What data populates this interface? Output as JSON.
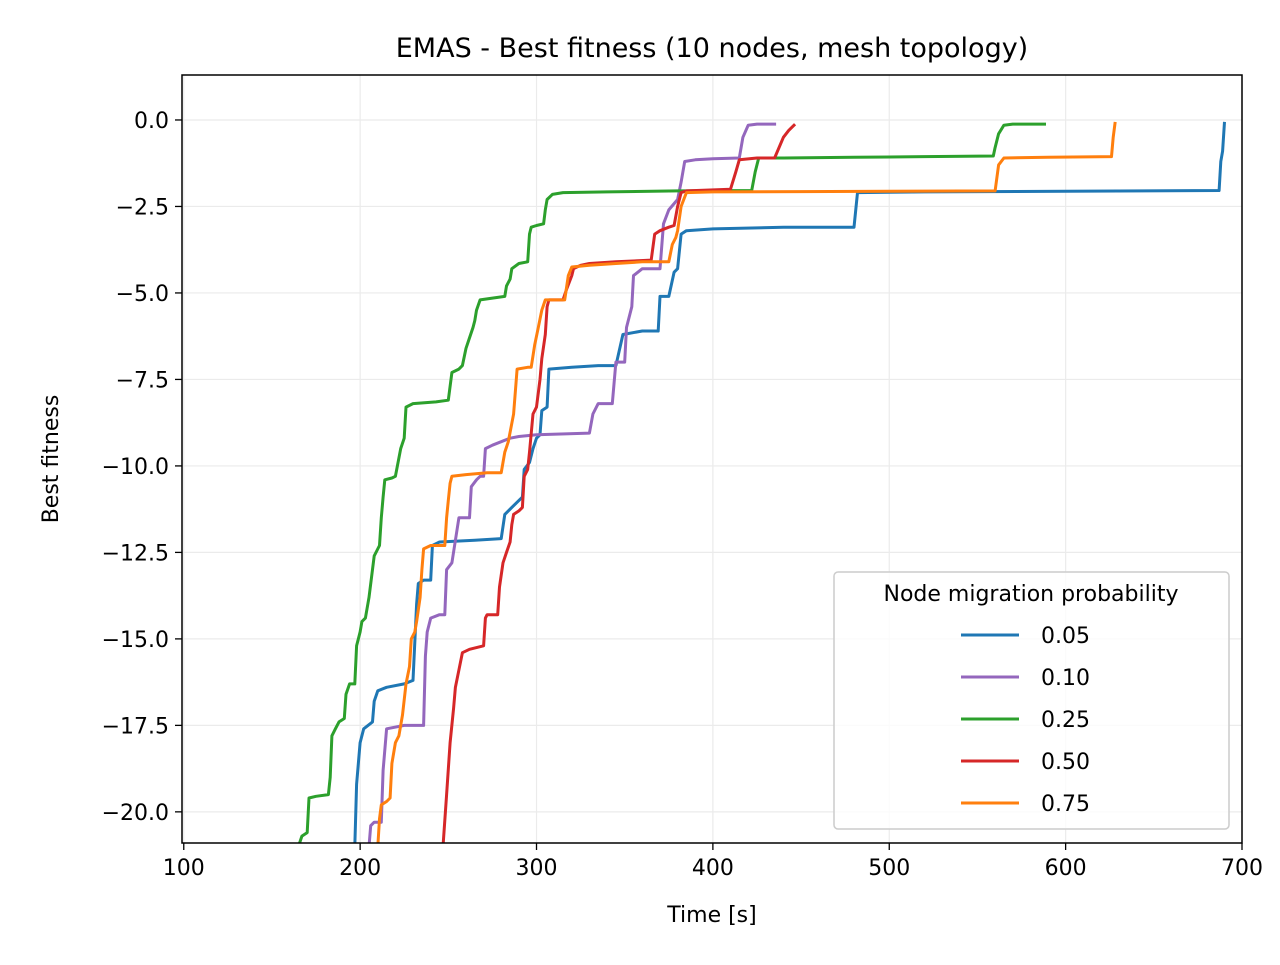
{
  "chart_data": {
    "type": "line",
    "title": "EMAS - Best fitness (10 nodes, mesh topology)",
    "xlabel": "Time [s]",
    "ylabel": "Best fitness",
    "xlim": [
      99,
      700
    ],
    "ylim": [
      -20.9,
      1.3
    ],
    "xticks": [
      100,
      200,
      300,
      400,
      500,
      600,
      700
    ],
    "yticks": [
      0.0,
      -2.5,
      -5.0,
      -7.5,
      -10.0,
      -12.5,
      -15.0,
      -17.5,
      -20.0
    ],
    "xtick_labels": [
      "100",
      "200",
      "300",
      "400",
      "500",
      "600",
      "700"
    ],
    "ytick_labels": [
      "0.0",
      "−2.5",
      "−5.0",
      "−7.5",
      "−10.0",
      "−12.5",
      "−15.0",
      "−17.5",
      "−20.0"
    ],
    "grid": true,
    "legend": {
      "title": "Node migration probability",
      "position": "lower-right"
    },
    "series": [
      {
        "name": "0.05",
        "color": "#1f77b4",
        "points": [
          [
            197,
            -21
          ],
          [
            198,
            -19.2
          ],
          [
            200,
            -18.0
          ],
          [
            202,
            -17.6
          ],
          [
            207,
            -17.4
          ],
          [
            208,
            -16.8
          ],
          [
            210,
            -16.5
          ],
          [
            215,
            -16.4
          ],
          [
            225,
            -16.3
          ],
          [
            230,
            -16.2
          ],
          [
            232,
            -14.0
          ],
          [
            233,
            -13.4
          ],
          [
            236,
            -13.3
          ],
          [
            240,
            -13.3
          ],
          [
            241,
            -12.3
          ],
          [
            245,
            -12.2
          ],
          [
            265,
            -12.15
          ],
          [
            280,
            -12.1
          ],
          [
            282,
            -11.4
          ],
          [
            286,
            -11.2
          ],
          [
            292,
            -10.9
          ],
          [
            293,
            -10.1
          ],
          [
            296,
            -9.9
          ],
          [
            298,
            -9.5
          ],
          [
            300,
            -9.2
          ],
          [
            302,
            -9.1
          ],
          [
            303,
            -8.4
          ],
          [
            306,
            -8.3
          ],
          [
            307,
            -7.2
          ],
          [
            320,
            -7.15
          ],
          [
            335,
            -7.1
          ],
          [
            345,
            -7.1
          ],
          [
            349,
            -6.2
          ],
          [
            360,
            -6.1
          ],
          [
            369,
            -6.1
          ],
          [
            370,
            -5.1
          ],
          [
            375,
            -5.1
          ],
          [
            378,
            -4.4
          ],
          [
            380,
            -4.3
          ],
          [
            382,
            -3.3
          ],
          [
            385,
            -3.2
          ],
          [
            400,
            -3.15
          ],
          [
            440,
            -3.1
          ],
          [
            480,
            -3.1
          ],
          [
            482,
            -2.1
          ],
          [
            520,
            -2.08
          ],
          [
            600,
            -2.06
          ],
          [
            687,
            -2.04
          ],
          [
            688,
            -1.2
          ],
          [
            689,
            -0.9
          ],
          [
            690,
            -0.1
          ]
        ]
      },
      {
        "name": "0.10",
        "color": "#9467bd",
        "points": [
          [
            205,
            -21
          ],
          [
            206,
            -20.4
          ],
          [
            208,
            -20.3
          ],
          [
            212,
            -20.3
          ],
          [
            213,
            -18.8
          ],
          [
            215,
            -17.6
          ],
          [
            225,
            -17.5
          ],
          [
            236,
            -17.5
          ],
          [
            237,
            -15.5
          ],
          [
            238,
            -14.8
          ],
          [
            240,
            -14.4
          ],
          [
            245,
            -14.3
          ],
          [
            248,
            -14.3
          ],
          [
            249,
            -13.0
          ],
          [
            252,
            -12.8
          ],
          [
            256,
            -11.5
          ],
          [
            262,
            -11.5
          ],
          [
            263,
            -10.6
          ],
          [
            266,
            -10.4
          ],
          [
            268,
            -10.3
          ],
          [
            270,
            -10.3
          ],
          [
            271,
            -9.5
          ],
          [
            275,
            -9.4
          ],
          [
            280,
            -9.3
          ],
          [
            285,
            -9.2
          ],
          [
            290,
            -9.15
          ],
          [
            300,
            -9.1
          ],
          [
            330,
            -9.05
          ],
          [
            332,
            -8.5
          ],
          [
            335,
            -8.2
          ],
          [
            343,
            -8.2
          ],
          [
            345,
            -7.0
          ],
          [
            350,
            -7.0
          ],
          [
            351,
            -6.0
          ],
          [
            354,
            -5.4
          ],
          [
            355,
            -4.5
          ],
          [
            360,
            -4.3
          ],
          [
            370,
            -4.3
          ],
          [
            372,
            -3.0
          ],
          [
            375,
            -2.6
          ],
          [
            380,
            -2.3
          ],
          [
            382,
            -1.8
          ],
          [
            384,
            -1.2
          ],
          [
            390,
            -1.15
          ],
          [
            400,
            -1.12
          ],
          [
            415,
            -1.1
          ],
          [
            417,
            -0.5
          ],
          [
            420,
            -0.15
          ],
          [
            425,
            -0.12
          ],
          [
            435,
            -0.12
          ]
        ]
      },
      {
        "name": "0.25",
        "color": "#2ca02c",
        "points": [
          [
            165,
            -21
          ],
          [
            167,
            -20.7
          ],
          [
            170,
            -20.6
          ],
          [
            171,
            -19.6
          ],
          [
            175,
            -19.55
          ],
          [
            182,
            -19.5
          ],
          [
            183,
            -19.0
          ],
          [
            184,
            -17.8
          ],
          [
            186,
            -17.6
          ],
          [
            188,
            -17.4
          ],
          [
            191,
            -17.3
          ],
          [
            192,
            -16.6
          ],
          [
            194,
            -16.3
          ],
          [
            197,
            -16.3
          ],
          [
            198,
            -15.2
          ],
          [
            200,
            -14.8
          ],
          [
            201,
            -14.5
          ],
          [
            203,
            -14.4
          ],
          [
            205,
            -13.8
          ],
          [
            208,
            -12.6
          ],
          [
            211,
            -12.3
          ],
          [
            212,
            -11.5
          ],
          [
            213,
            -10.9
          ],
          [
            214,
            -10.4
          ],
          [
            218,
            -10.35
          ],
          [
            220,
            -10.3
          ],
          [
            223,
            -9.5
          ],
          [
            225,
            -9.2
          ],
          [
            226,
            -8.3
          ],
          [
            230,
            -8.2
          ],
          [
            243,
            -8.15
          ],
          [
            250,
            -8.1
          ],
          [
            252,
            -7.3
          ],
          [
            256,
            -7.2
          ],
          [
            258,
            -7.1
          ],
          [
            260,
            -6.6
          ],
          [
            262,
            -6.3
          ],
          [
            264,
            -6.0
          ],
          [
            265,
            -5.8
          ],
          [
            266,
            -5.5
          ],
          [
            268,
            -5.2
          ],
          [
            275,
            -5.15
          ],
          [
            282,
            -5.1
          ],
          [
            283,
            -4.8
          ],
          [
            285,
            -4.6
          ],
          [
            286,
            -4.3
          ],
          [
            290,
            -4.15
          ],
          [
            295,
            -4.1
          ],
          [
            296,
            -3.3
          ],
          [
            297,
            -3.1
          ],
          [
            300,
            -3.05
          ],
          [
            304,
            -3.0
          ],
          [
            305,
            -2.6
          ],
          [
            306,
            -2.3
          ],
          [
            309,
            -2.15
          ],
          [
            315,
            -2.1
          ],
          [
            340,
            -2.08
          ],
          [
            380,
            -2.05
          ],
          [
            422,
            -2.04
          ],
          [
            424,
            -1.5
          ],
          [
            426,
            -1.1
          ],
          [
            440,
            -1.1
          ],
          [
            480,
            -1.08
          ],
          [
            520,
            -1.06
          ],
          [
            559,
            -1.04
          ],
          [
            560,
            -0.8
          ],
          [
            562,
            -0.4
          ],
          [
            565,
            -0.15
          ],
          [
            570,
            -0.12
          ],
          [
            588,
            -0.12
          ]
        ]
      },
      {
        "name": "0.50",
        "color": "#d62728",
        "points": [
          [
            247,
            -21
          ],
          [
            249,
            -19.5
          ],
          [
            251,
            -18.0
          ],
          [
            253,
            -17.0
          ],
          [
            254,
            -16.4
          ],
          [
            256,
            -15.9
          ],
          [
            258,
            -15.4
          ],
          [
            262,
            -15.3
          ],
          [
            270,
            -15.2
          ],
          [
            271,
            -14.4
          ],
          [
            272,
            -14.3
          ],
          [
            278,
            -14.3
          ],
          [
            279,
            -13.5
          ],
          [
            281,
            -12.8
          ],
          [
            283,
            -12.5
          ],
          [
            285,
            -12.2
          ],
          [
            286,
            -11.7
          ],
          [
            287,
            -11.4
          ],
          [
            290,
            -11.3
          ],
          [
            292,
            -11.2
          ],
          [
            293,
            -10.3
          ],
          [
            295,
            -10.1
          ],
          [
            296,
            -9.6
          ],
          [
            298,
            -8.5
          ],
          [
            300,
            -8.3
          ],
          [
            302,
            -7.5
          ],
          [
            303,
            -6.9
          ],
          [
            305,
            -6.2
          ],
          [
            306,
            -5.4
          ],
          [
            307,
            -5.2
          ],
          [
            312,
            -5.2
          ],
          [
            315,
            -5.2
          ],
          [
            317,
            -4.9
          ],
          [
            320,
            -4.5
          ],
          [
            321,
            -4.3
          ],
          [
            325,
            -4.2
          ],
          [
            330,
            -4.15
          ],
          [
            345,
            -4.1
          ],
          [
            365,
            -4.05
          ],
          [
            367,
            -3.3
          ],
          [
            370,
            -3.2
          ],
          [
            375,
            -3.1
          ],
          [
            378,
            -3.05
          ],
          [
            380,
            -2.5
          ],
          [
            382,
            -2.1
          ],
          [
            385,
            -2.05
          ],
          [
            410,
            -2.0
          ],
          [
            413,
            -1.5
          ],
          [
            415,
            -1.15
          ],
          [
            425,
            -1.1
          ],
          [
            435,
            -1.1
          ],
          [
            440,
            -0.5
          ],
          [
            443,
            -0.3
          ],
          [
            446,
            -0.15
          ]
        ]
      },
      {
        "name": "0.75",
        "color": "#ff7f0e",
        "points": [
          [
            210,
            -21
          ],
          [
            211,
            -20.2
          ],
          [
            212,
            -19.8
          ],
          [
            215,
            -19.7
          ],
          [
            217,
            -19.6
          ],
          [
            218,
            -18.6
          ],
          [
            220,
            -18.0
          ],
          [
            222,
            -17.8
          ],
          [
            224,
            -17.2
          ],
          [
            226,
            -16.3
          ],
          [
            228,
            -15.8
          ],
          [
            229,
            -15.0
          ],
          [
            231,
            -14.8
          ],
          [
            232,
            -14.5
          ],
          [
            234,
            -13.8
          ],
          [
            235,
            -13.0
          ],
          [
            236,
            -12.4
          ],
          [
            240,
            -12.3
          ],
          [
            248,
            -12.3
          ],
          [
            249,
            -11.5
          ],
          [
            250,
            -11.0
          ],
          [
            251,
            -10.5
          ],
          [
            252,
            -10.3
          ],
          [
            260,
            -10.25
          ],
          [
            272,
            -10.2
          ],
          [
            280,
            -10.2
          ],
          [
            282,
            -9.6
          ],
          [
            284,
            -9.3
          ],
          [
            287,
            -8.5
          ],
          [
            289,
            -7.2
          ],
          [
            295,
            -7.15
          ],
          [
            297,
            -7.15
          ],
          [
            299,
            -6.5
          ],
          [
            301,
            -6.0
          ],
          [
            303,
            -5.5
          ],
          [
            305,
            -5.2
          ],
          [
            316,
            -5.2
          ],
          [
            318,
            -4.5
          ],
          [
            320,
            -4.25
          ],
          [
            330,
            -4.2
          ],
          [
            345,
            -4.15
          ],
          [
            360,
            -4.1
          ],
          [
            375,
            -4.1
          ],
          [
            377,
            -3.6
          ],
          [
            379,
            -3.4
          ],
          [
            380,
            -3.2
          ],
          [
            382,
            -2.5
          ],
          [
            385,
            -2.1
          ],
          [
            400,
            -2.08
          ],
          [
            450,
            -2.07
          ],
          [
            500,
            -2.06
          ],
          [
            560,
            -2.05
          ],
          [
            562,
            -1.3
          ],
          [
            565,
            -1.1
          ],
          [
            590,
            -1.08
          ],
          [
            626,
            -1.06
          ],
          [
            627,
            -0.5
          ],
          [
            628,
            -0.1
          ]
        ]
      }
    ]
  }
}
